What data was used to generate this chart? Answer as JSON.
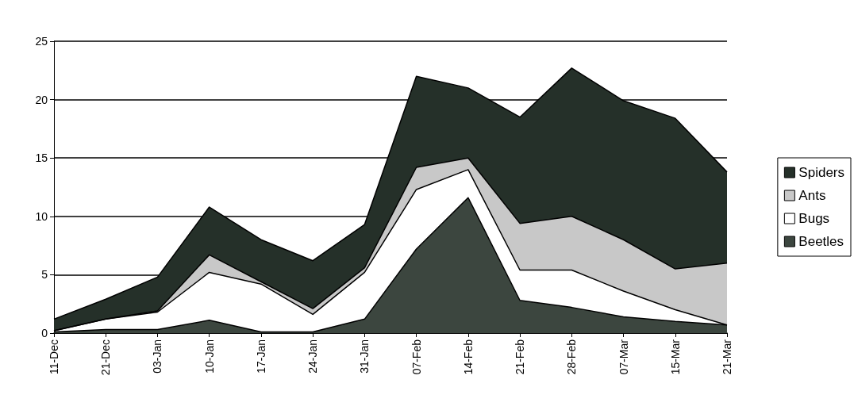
{
  "chart_data": {
    "type": "area",
    "stacked": true,
    "categories": [
      "11-Dec",
      "21-Dec",
      "03-Jan",
      "10-Jan",
      "17-Jan",
      "24-Jan",
      "31-Jan",
      "07-Feb",
      "14-Feb",
      "21-Feb",
      "28-Feb",
      "07-Mar",
      "15-Mar",
      "21-Mar"
    ],
    "series": [
      {
        "name": "Beetles",
        "color": "#3c463f",
        "values": [
          0.1,
          0.3,
          0.3,
          1.1,
          0.1,
          0.1,
          1.2,
          7.2,
          11.6,
          2.8,
          2.2,
          1.4,
          1.0,
          0.7
        ]
      },
      {
        "name": "Bugs",
        "color": "#ffffff",
        "values": [
          0.1,
          0.9,
          1.5,
          4.1,
          4.1,
          1.5,
          4.0,
          5.1,
          2.4,
          2.6,
          3.2,
          2.2,
          1.0,
          0.0
        ]
      },
      {
        "name": "Ants",
        "color": "#c8c8c8",
        "values": [
          0.0,
          0.0,
          0.1,
          1.5,
          0.2,
          0.5,
          0.4,
          1.9,
          1.0,
          4.0,
          4.6,
          4.4,
          3.5,
          5.3
        ]
      },
      {
        "name": "Spiders",
        "color": "#253029",
        "values": [
          1.0,
          1.7,
          2.9,
          4.1,
          3.6,
          4.1,
          3.7,
          7.8,
          6.0,
          9.1,
          12.7,
          11.9,
          12.9,
          7.8
        ]
      }
    ],
    "ylim": [
      0,
      25
    ],
    "yticks": [
      0,
      5,
      10,
      15,
      20,
      25
    ],
    "grid": "y",
    "legend": "right"
  }
}
